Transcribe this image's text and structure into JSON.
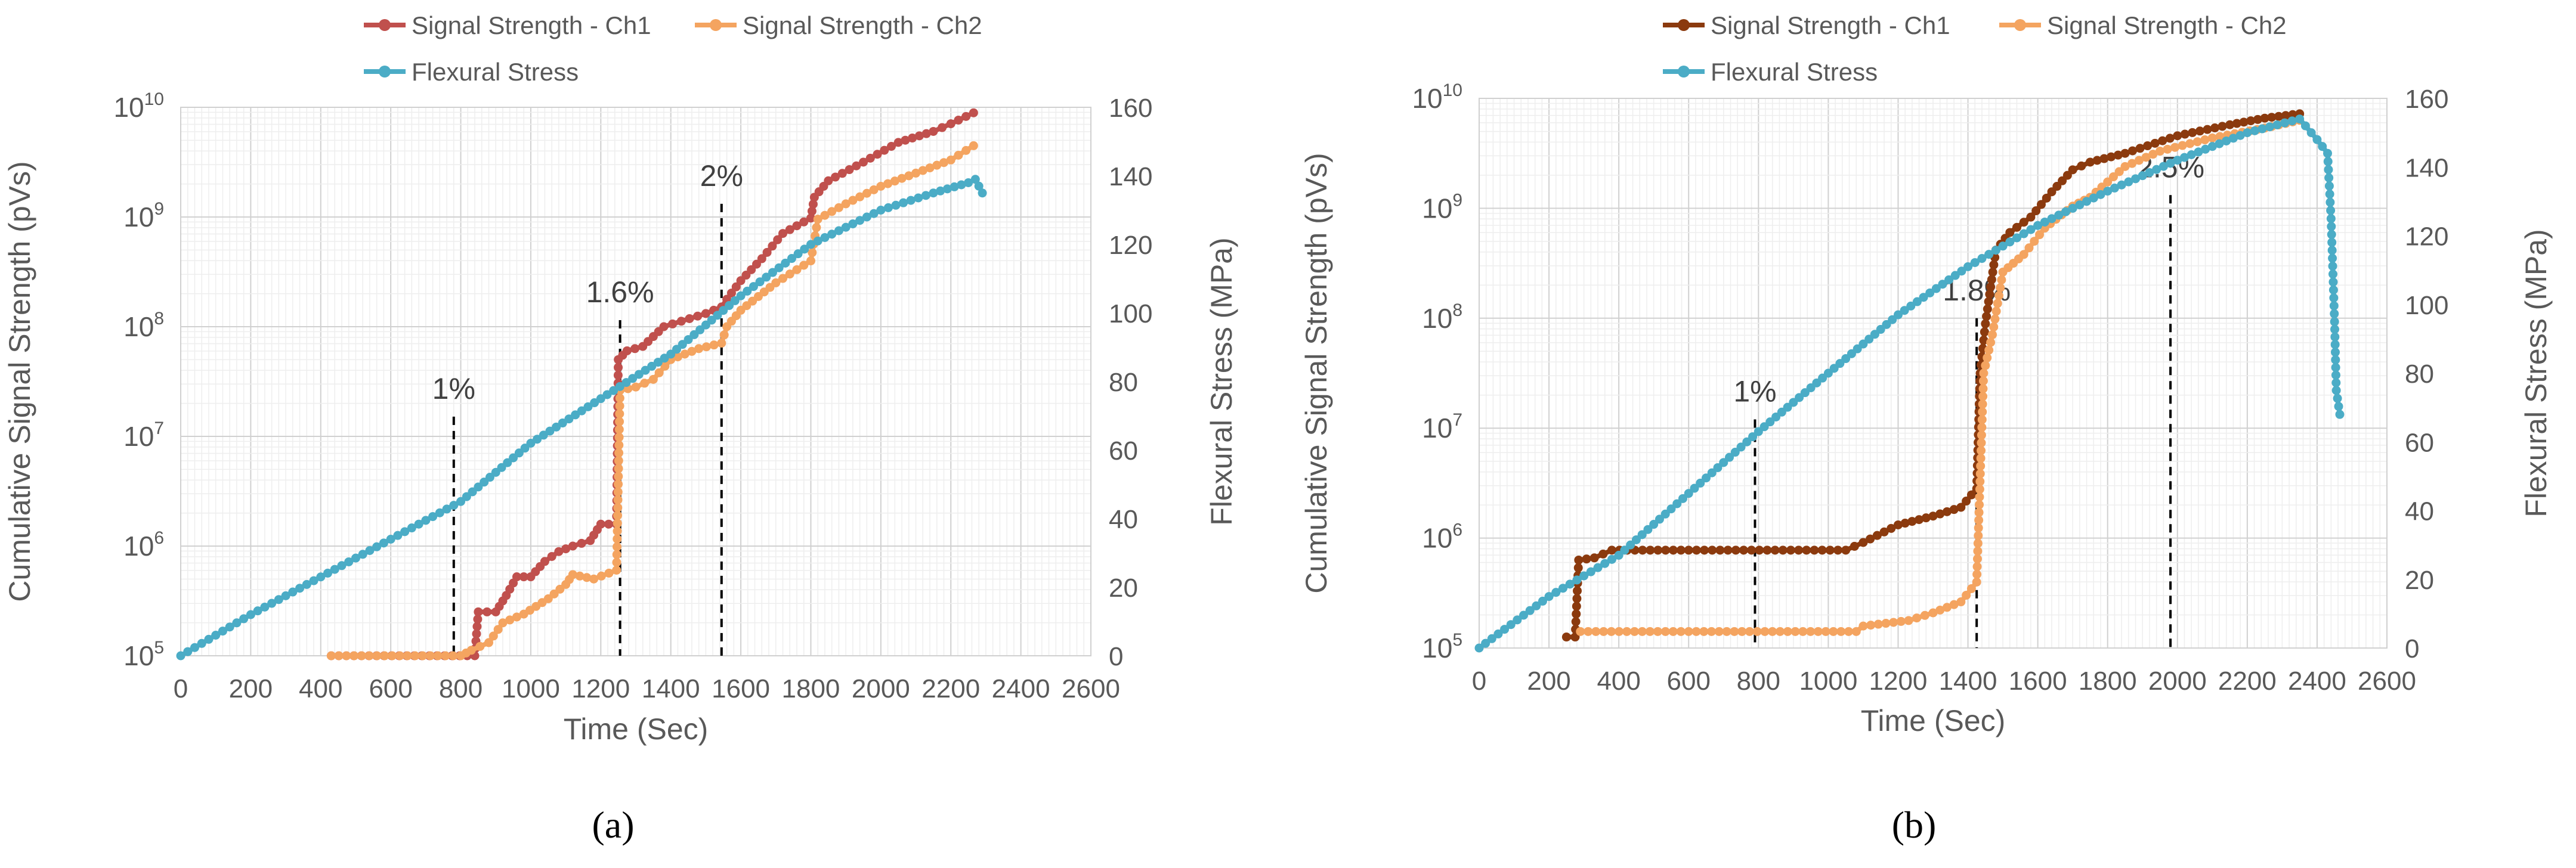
{
  "figure": {
    "colors": {
      "ch1": "#C0504D",
      "ch1_b": "#8B3A0E",
      "ch2": "#F4A460",
      "stress": "#4BACC6",
      "grid": "#D9D9D9",
      "axis_text": "#595959"
    }
  },
  "chart_data": [
    {
      "id": "a",
      "type": "line",
      "caption": "(a)",
      "legend": [
        "Signal Strength - Ch1",
        "Signal Strength - Ch2",
        "Flexural Stress"
      ],
      "legend_placement": "top",
      "xlabel": "Time (Sec)",
      "ylabel": "Cumulative Signal Strength (pVs)",
      "y2label": "Flexural Stress (MPa)",
      "xlim": [
        0,
        2600
      ],
      "xticks": [
        "0",
        "200",
        "400",
        "600",
        "800",
        "1000",
        "1200",
        "1400",
        "1600",
        "1800",
        "2000",
        "2200",
        "2400",
        "2600"
      ],
      "ylim_log": [
        5,
        10
      ],
      "yticks_base": "10",
      "yticks_exp": [
        "5",
        "6",
        "7",
        "8",
        "9",
        "10"
      ],
      "y2lim": [
        0,
        160
      ],
      "y2ticks": [
        "0",
        "20",
        "40",
        "60",
        "80",
        "100",
        "120",
        "140",
        "160"
      ],
      "grid": true,
      "markers": [
        {
          "label": "1%",
          "x": 780,
          "top_log": 7.18
        },
        {
          "label": "1.6%",
          "x": 1255,
          "top_log": 8.06
        },
        {
          "label": "2%",
          "x": 1545,
          "top_log": 9.12
        }
      ],
      "series": [
        {
          "name": "Signal Strength - Ch1",
          "axis": "left",
          "color": "#C0504D",
          "points": [
            [
              430,
              5.0
            ],
            [
              840,
              5.0
            ],
            [
              850,
              5.4
            ],
            [
              900,
              5.4
            ],
            [
              930,
              5.55
            ],
            [
              960,
              5.72
            ],
            [
              1000,
              5.72
            ],
            [
              1040,
              5.86
            ],
            [
              1080,
              5.95
            ],
            [
              1120,
              6.0
            ],
            [
              1170,
              6.05
            ],
            [
              1200,
              6.2
            ],
            [
              1245,
              6.2
            ],
            [
              1250,
              7.7
            ],
            [
              1275,
              7.78
            ],
            [
              1320,
              7.82
            ],
            [
              1380,
              8.0
            ],
            [
              1430,
              8.05
            ],
            [
              1500,
              8.12
            ],
            [
              1545,
              8.18
            ],
            [
              1560,
              8.25
            ],
            [
              1600,
              8.42
            ],
            [
              1660,
              8.62
            ],
            [
              1720,
              8.85
            ],
            [
              1800,
              8.99
            ],
            [
              1810,
              9.18
            ],
            [
              1850,
              9.33
            ],
            [
              1950,
              9.5
            ],
            [
              2050,
              9.68
            ],
            [
              2150,
              9.78
            ],
            [
              2200,
              9.85
            ],
            [
              2265,
              9.95
            ]
          ]
        },
        {
          "name": "Signal Strength - Ch2",
          "axis": "left",
          "color": "#F4A460",
          "points": [
            [
              430,
              5.0
            ],
            [
              800,
              5.0
            ],
            [
              830,
              5.05
            ],
            [
              880,
              5.12
            ],
            [
              920,
              5.3
            ],
            [
              980,
              5.38
            ],
            [
              1050,
              5.52
            ],
            [
              1100,
              5.65
            ],
            [
              1120,
              5.74
            ],
            [
              1180,
              5.7
            ],
            [
              1245,
              5.78
            ],
            [
              1255,
              7.42
            ],
            [
              1300,
              7.45
            ],
            [
              1350,
              7.52
            ],
            [
              1400,
              7.7
            ],
            [
              1480,
              7.8
            ],
            [
              1545,
              7.85
            ],
            [
              1560,
              8.0
            ],
            [
              1600,
              8.15
            ],
            [
              1700,
              8.4
            ],
            [
              1800,
              8.6
            ],
            [
              1820,
              8.98
            ],
            [
              1900,
              9.12
            ],
            [
              2000,
              9.28
            ],
            [
              2100,
              9.4
            ],
            [
              2200,
              9.52
            ],
            [
              2265,
              9.65
            ]
          ]
        },
        {
          "name": "Flexural Stress",
          "axis": "right",
          "color": "#4BACC6",
          "points": [
            [
              0,
              0
            ],
            [
              200,
              12
            ],
            [
              400,
              23
            ],
            [
              600,
              34
            ],
            [
              800,
              45
            ],
            [
              1000,
              62
            ],
            [
              1200,
              75
            ],
            [
              1400,
              88
            ],
            [
              1600,
              105
            ],
            [
              1800,
              120
            ],
            [
              2000,
              130
            ],
            [
              2150,
              135
            ],
            [
              2250,
              138
            ],
            [
              2270,
              139
            ],
            [
              2290,
              135
            ]
          ]
        }
      ]
    },
    {
      "id": "b",
      "type": "line",
      "caption": "(b)",
      "legend": [
        "Signal Strength - Ch1",
        "Signal Strength - Ch2",
        "Flexural Stress"
      ],
      "legend_placement": "top",
      "xlabel": "Time (Sec)",
      "ylabel": "Cumulative Signal Strength (pVs)",
      "y2label": "Flexural Stress (MPa)",
      "xlim": [
        0,
        2600
      ],
      "xticks": [
        "0",
        "200",
        "400",
        "600",
        "800",
        "1000",
        "1200",
        "1400",
        "1600",
        "1800",
        "2000",
        "2200",
        "2400",
        "2600"
      ],
      "ylim_log": [
        5,
        10
      ],
      "yticks_base": "10",
      "yticks_exp": [
        "5",
        "6",
        "7",
        "8",
        "9",
        "10"
      ],
      "y2lim": [
        0,
        160
      ],
      "y2ticks": [
        "0",
        "20",
        "40",
        "60",
        "80",
        "100",
        "120",
        "140",
        "160"
      ],
      "grid": true,
      "markers": [
        {
          "label": "1%",
          "x": 790,
          "top_log": 7.08
        },
        {
          "label": "1.8%",
          "x": 1425,
          "top_log": 8.0
        },
        {
          "label": "2.5%",
          "x": 1980,
          "top_log": 9.12
        }
      ],
      "series": [
        {
          "name": "Signal Strength - Ch1",
          "axis": "left",
          "color": "#8B3A0E",
          "points": [
            [
              250,
              5.1
            ],
            [
              275,
              5.1
            ],
            [
              285,
              5.8
            ],
            [
              330,
              5.82
            ],
            [
              380,
              5.89
            ],
            [
              600,
              5.89
            ],
            [
              1050,
              5.89
            ],
            [
              1100,
              5.96
            ],
            [
              1200,
              6.12
            ],
            [
              1300,
              6.2
            ],
            [
              1380,
              6.28
            ],
            [
              1425,
              6.45
            ],
            [
              1435,
              7.5
            ],
            [
              1450,
              7.95
            ],
            [
              1480,
              8.62
            ],
            [
              1520,
              8.78
            ],
            [
              1580,
              8.92
            ],
            [
              1640,
              9.15
            ],
            [
              1700,
              9.35
            ],
            [
              1750,
              9.42
            ],
            [
              1850,
              9.5
            ],
            [
              2000,
              9.66
            ],
            [
              2150,
              9.76
            ],
            [
              2250,
              9.82
            ],
            [
              2350,
              9.86
            ]
          ]
        },
        {
          "name": "Signal Strength - Ch2",
          "axis": "left",
          "color": "#F4A460",
          "points": [
            [
              290,
              5.15
            ],
            [
              600,
              5.15
            ],
            [
              1080,
              5.15
            ],
            [
              1100,
              5.2
            ],
            [
              1230,
              5.25
            ],
            [
              1300,
              5.32
            ],
            [
              1380,
              5.42
            ],
            [
              1425,
              5.6
            ],
            [
              1445,
              7.5
            ],
            [
              1470,
              7.85
            ],
            [
              1500,
              8.42
            ],
            [
              1560,
              8.58
            ],
            [
              1620,
              8.82
            ],
            [
              1700,
              9.02
            ],
            [
              1750,
              9.1
            ],
            [
              1850,
              9.38
            ],
            [
              1950,
              9.52
            ],
            [
              2100,
              9.64
            ],
            [
              2250,
              9.73
            ],
            [
              2350,
              9.8
            ]
          ]
        },
        {
          "name": "Flexural Stress",
          "axis": "right",
          "color": "#4BACC6",
          "points": [
            [
              0,
              0
            ],
            [
              200,
              15
            ],
            [
              400,
              27
            ],
            [
              600,
              45
            ],
            [
              800,
              63
            ],
            [
              1000,
              80
            ],
            [
              1200,
              97
            ],
            [
              1400,
              111
            ],
            [
              1600,
              123
            ],
            [
              1800,
              133
            ],
            [
              2000,
              142
            ],
            [
              2200,
              150
            ],
            [
              2350,
              154
            ],
            [
              2400,
              148
            ],
            [
              2430,
              144
            ],
            [
              2440,
              125
            ],
            [
              2450,
              95
            ],
            [
              2455,
              75
            ],
            [
              2465,
              68
            ]
          ]
        }
      ]
    }
  ]
}
